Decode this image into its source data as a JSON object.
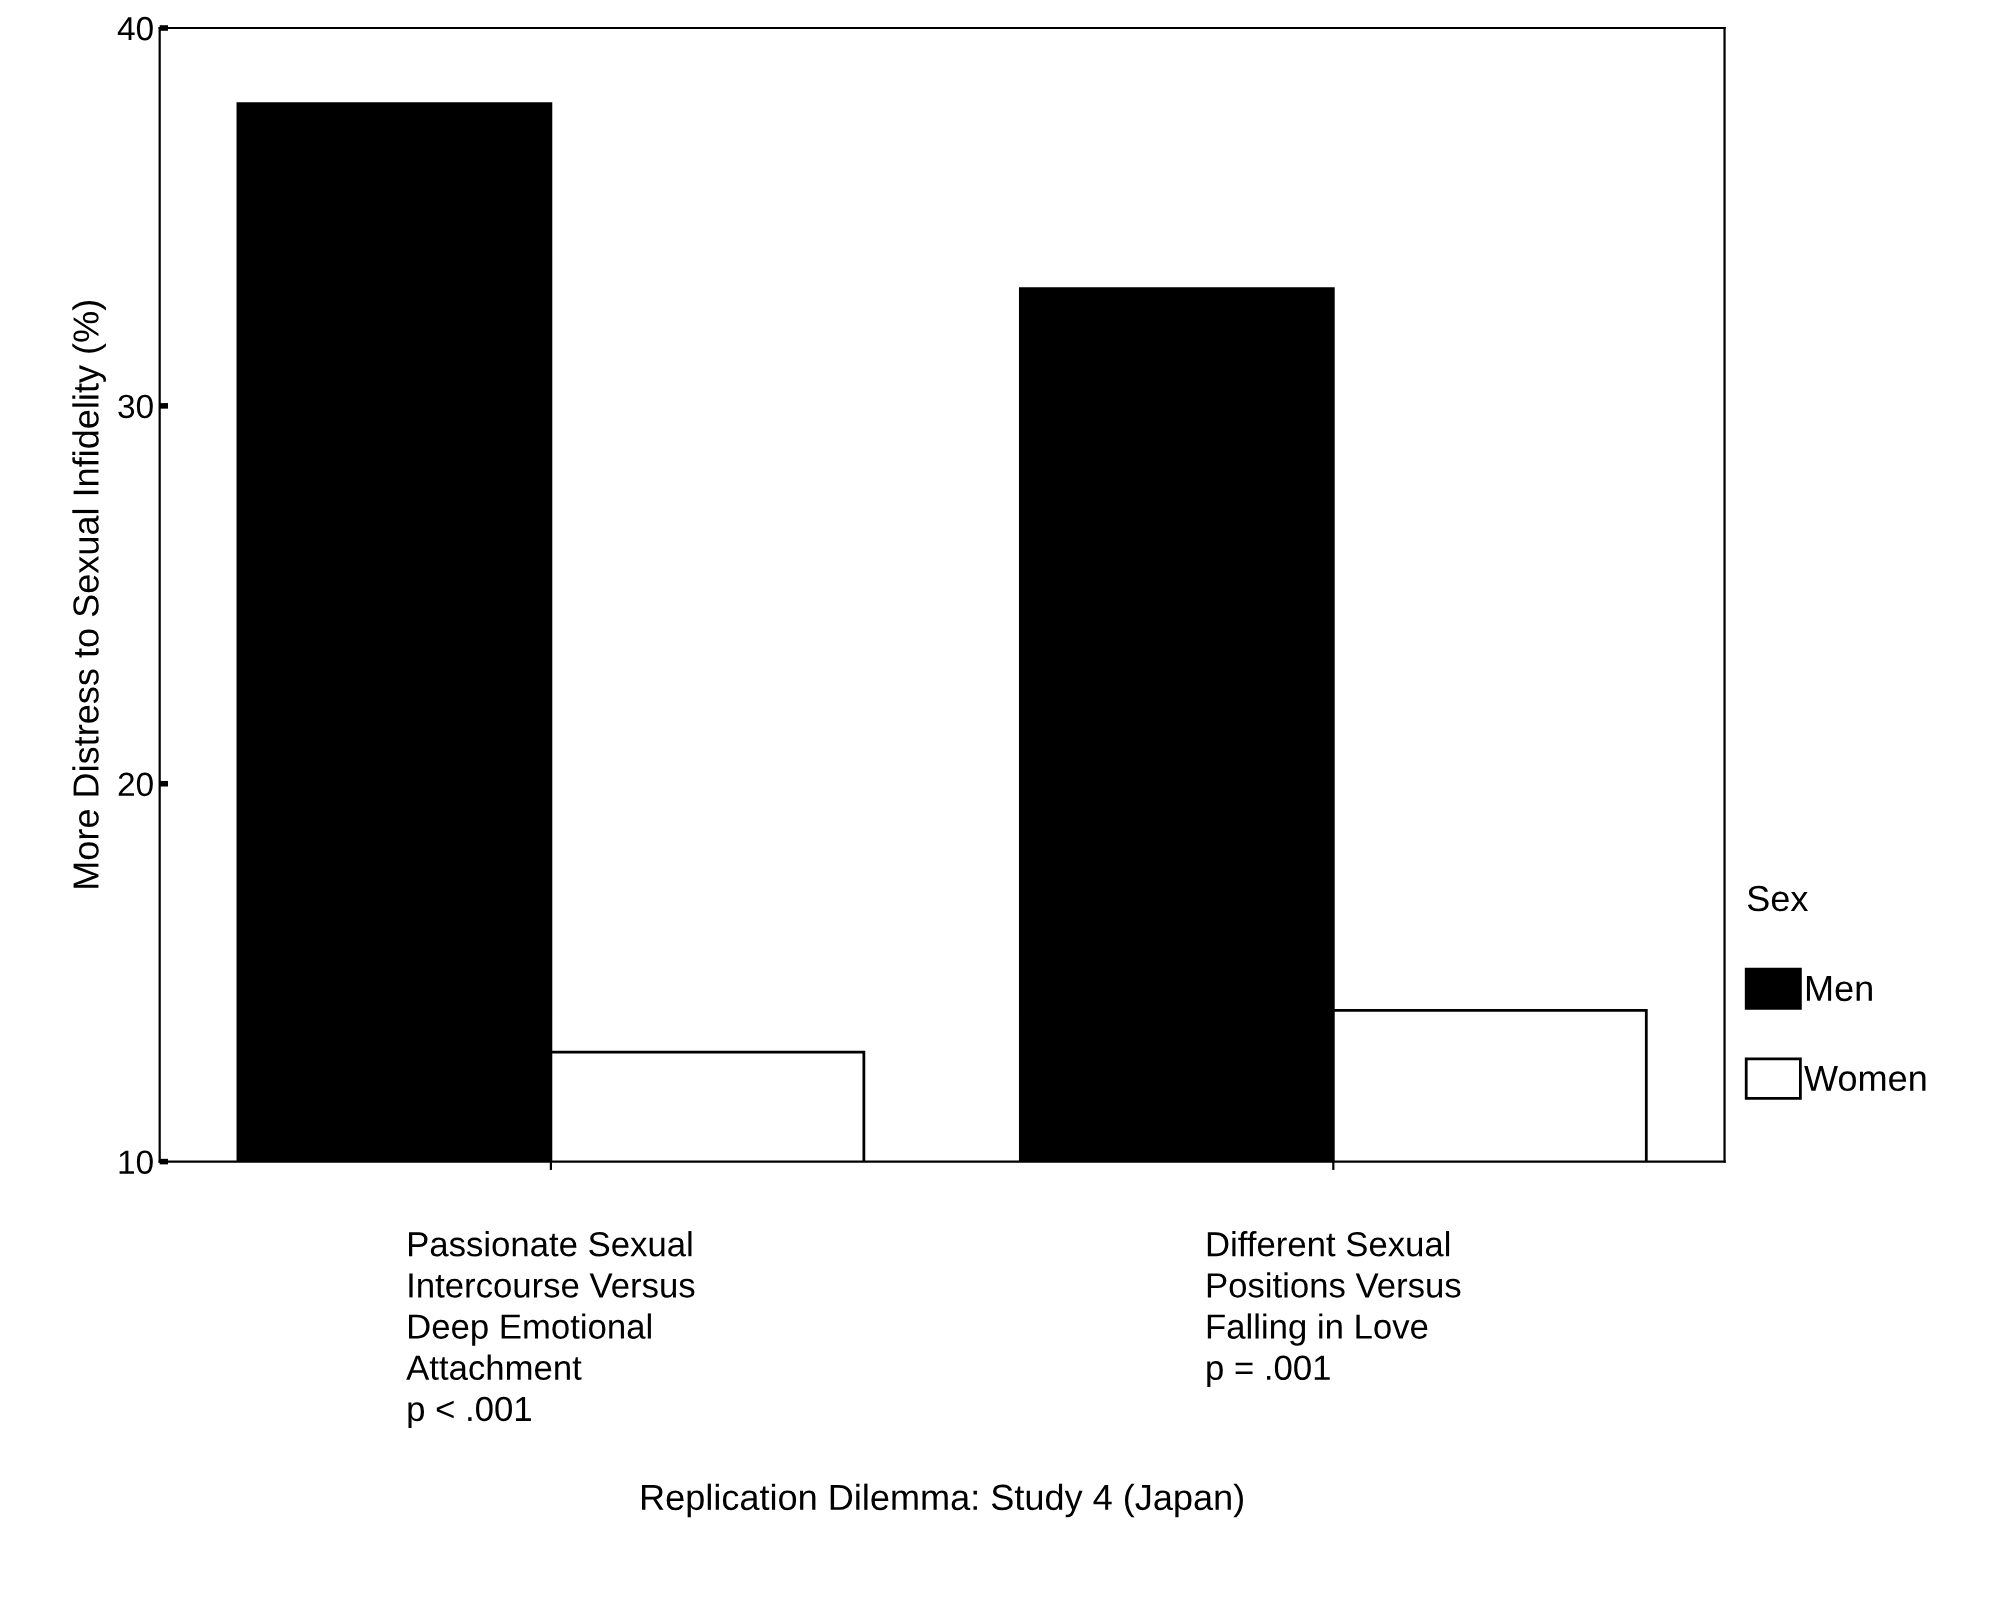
{
  "chart_data": {
    "type": "bar",
    "xlabel": "Replication Dilemma: Study 4 (Japan)",
    "ylabel": "More Distress to Sexual Infidelity (%)",
    "legend_title": "Sex",
    "categories": [
      "Passionate Sexual\nIntercourse Versus\nDeep Emotional\nAttachment\np < .001",
      "Different Sexual\nPositions Versus\nFalling in Love\np = .001"
    ],
    "series": [
      {
        "name": "Men",
        "color": "#000000",
        "values": [
          38.0,
          33.1
        ]
      },
      {
        "name": "Women",
        "color": "#ffffff",
        "values": [
          12.9,
          14.0
        ]
      }
    ],
    "ylim": [
      10,
      40
    ],
    "yticks": [
      10,
      20,
      30,
      40
    ],
    "grid": false,
    "legend": "right"
  }
}
